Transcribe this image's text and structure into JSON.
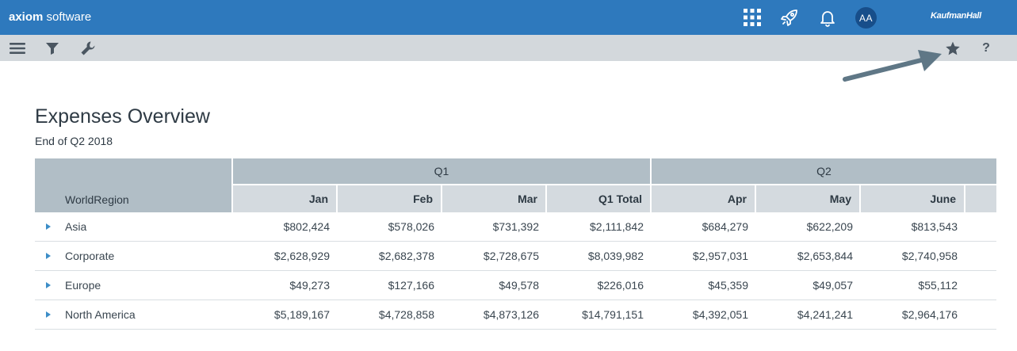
{
  "app": {
    "brand_bold": "axiom",
    "brand_rest": " software",
    "avatar_initials": "AA",
    "vendor_logo": "KaufmanHall",
    "topbar_icons": [
      "apps-grid-icon",
      "rocket-icon",
      "bell-icon"
    ],
    "colors": {
      "topbar": "#2e79bd",
      "toolbar": "#d3d8dc",
      "accent": "#3c8dc7",
      "header_dark": "#b1bec6",
      "header_light": "#d4dadf"
    }
  },
  "toolbar": {
    "left_icons": [
      "menu-icon",
      "filter-icon",
      "wrench-icon"
    ],
    "right_icons": [
      "star-icon"
    ],
    "help_label": "?"
  },
  "report": {
    "title": "Expenses Overview",
    "subtitle": "End of Q2 2018",
    "row_header": "WorldRegion",
    "groups": [
      "Q1",
      "Q2"
    ],
    "columns": [
      "Jan",
      "Feb",
      "Mar",
      "Q1 Total",
      "Apr",
      "May",
      "June"
    ],
    "rows": [
      {
        "label": "Asia",
        "values": [
          "$802,424",
          "$578,026",
          "$731,392",
          "$2,111,842",
          "$684,279",
          "$622,209",
          "$813,543"
        ]
      },
      {
        "label": "Corporate",
        "values": [
          "$2,628,929",
          "$2,682,378",
          "$2,728,675",
          "$8,039,982",
          "$2,957,031",
          "$2,653,844",
          "$2,740,958"
        ]
      },
      {
        "label": "Europe",
        "values": [
          "$49,273",
          "$127,166",
          "$49,578",
          "$226,016",
          "$45,359",
          "$49,057",
          "$55,112"
        ]
      },
      {
        "label": "North America",
        "values": [
          "$5,189,167",
          "$4,728,858",
          "$4,873,126",
          "$14,791,151",
          "$4,392,051",
          "$4,241,241",
          "$2,964,176"
        ]
      }
    ]
  }
}
